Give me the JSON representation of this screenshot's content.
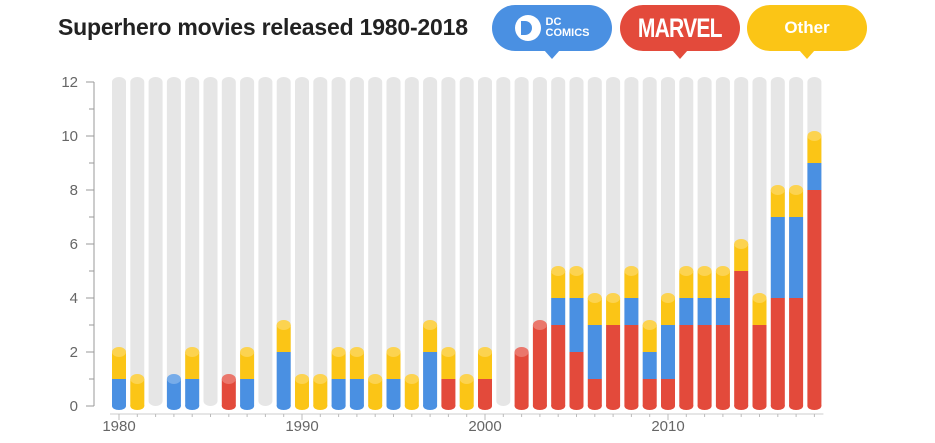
{
  "title": "Superhero movies released 1980-2018",
  "legend": {
    "dc": {
      "line1": "DC",
      "line2": "COMICS",
      "color": "#4a90e2"
    },
    "marvel": {
      "label": "MARVEL",
      "color": "#e34a3b"
    },
    "other": {
      "label": "Other",
      "color": "#fbc516"
    }
  },
  "chart_data": {
    "type": "bar",
    "stacked": true,
    "title": "Superhero movies released 1980-2018",
    "x": [
      1980,
      1981,
      1982,
      1983,
      1984,
      1985,
      1986,
      1987,
      1988,
      1989,
      1990,
      1991,
      1992,
      1993,
      1994,
      1995,
      1996,
      1997,
      1998,
      1999,
      2000,
      2001,
      2002,
      2003,
      2004,
      2005,
      2006,
      2007,
      2008,
      2009,
      2010,
      2011,
      2012,
      2013,
      2014,
      2015,
      2016,
      2017,
      2018
    ],
    "series": [
      {
        "name": "MARVEL",
        "color": "#e34a3b",
        "values": [
          0,
          0,
          0,
          0,
          0,
          0,
          1,
          0,
          0,
          0,
          0,
          0,
          0,
          0,
          0,
          0,
          0,
          0,
          1,
          0,
          1,
          0,
          2,
          3,
          3,
          2,
          1,
          3,
          3,
          1,
          1,
          3,
          3,
          3,
          5,
          3,
          4,
          4,
          8
        ]
      },
      {
        "name": "DC COMICS",
        "color": "#4a90e2",
        "values": [
          1,
          0,
          0,
          1,
          1,
          0,
          0,
          1,
          0,
          2,
          0,
          0,
          1,
          1,
          0,
          1,
          0,
          2,
          0,
          0,
          0,
          0,
          0,
          0,
          1,
          2,
          2,
          0,
          1,
          1,
          2,
          1,
          1,
          1,
          0,
          0,
          3,
          3,
          1
        ]
      },
      {
        "name": "Other",
        "color": "#fbc516",
        "values": [
          1,
          1,
          0,
          0,
          1,
          0,
          0,
          1,
          0,
          1,
          1,
          1,
          1,
          1,
          1,
          1,
          1,
          1,
          1,
          1,
          1,
          0,
          0,
          0,
          1,
          1,
          1,
          1,
          1,
          1,
          1,
          1,
          1,
          1,
          1,
          1,
          1,
          1,
          1
        ]
      }
    ],
    "max_per_year": 12,
    "ylim": [
      0,
      12
    ],
    "yticks": [
      0,
      2,
      4,
      6,
      8,
      10,
      12
    ],
    "xtick_labels": [
      "1980",
      "1990",
      "2000",
      "2010"
    ],
    "xtick_years": [
      1980,
      1990,
      2000,
      2010
    ],
    "background_track_color": "#e6e6e6",
    "grid": false
  }
}
